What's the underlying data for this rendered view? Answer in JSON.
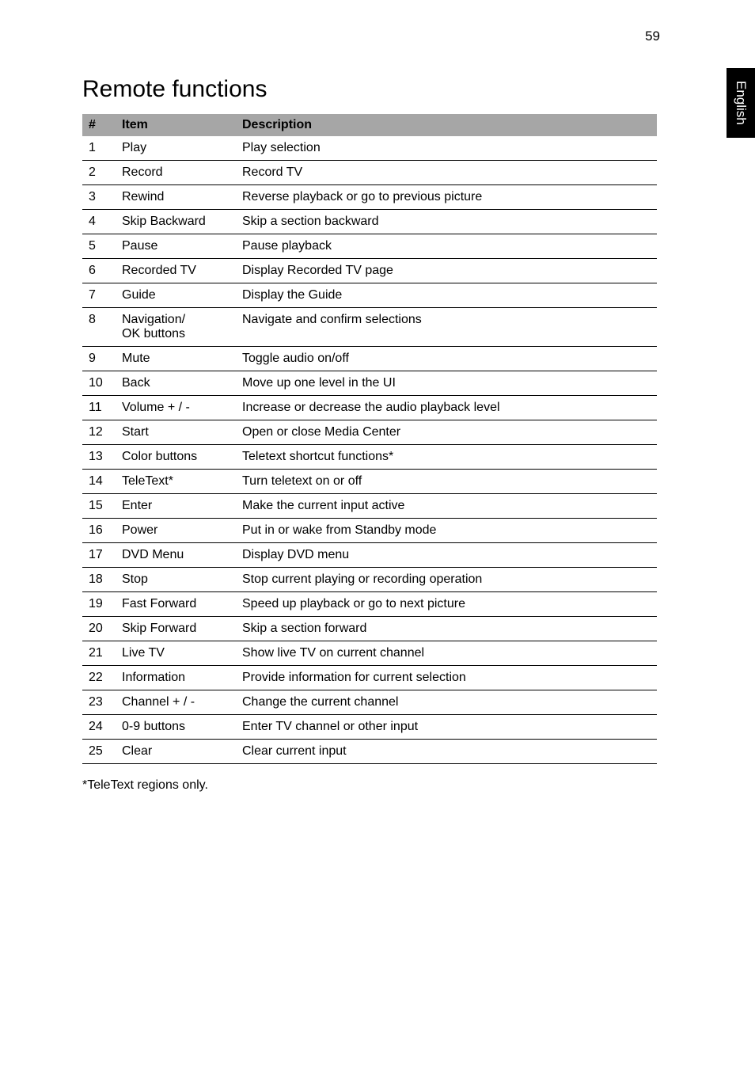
{
  "page_number": "59",
  "side_tab": "English",
  "section_title": "Remote functions",
  "table": {
    "headers": [
      "#",
      "Item",
      "Description"
    ],
    "rows": [
      [
        "1",
        "Play",
        "Play selection"
      ],
      [
        "2",
        "Record",
        "Record TV"
      ],
      [
        "3",
        "Rewind",
        "Reverse playback or go to previous picture"
      ],
      [
        "4",
        "Skip Backward",
        "Skip a section backward"
      ],
      [
        "5",
        "Pause",
        "Pause playback"
      ],
      [
        "6",
        "Recorded TV",
        "Display Recorded TV page"
      ],
      [
        "7",
        "Guide",
        "Display the Guide"
      ],
      [
        "8",
        "Navigation/\nOK buttons",
        "Navigate and confirm selections"
      ],
      [
        "9",
        "Mute",
        "Toggle audio on/off"
      ],
      [
        "10",
        "Back",
        "Move up one level in the UI"
      ],
      [
        "11",
        "Volume + / -",
        "Increase or decrease the audio playback level"
      ],
      [
        "12",
        "Start",
        "Open or close Media Center"
      ],
      [
        "13",
        "Color buttons",
        "Teletext shortcut functions*"
      ],
      [
        "14",
        "TeleText*",
        "Turn teletext on or off"
      ],
      [
        "15",
        "Enter",
        "Make the current input active"
      ],
      [
        "16",
        "Power",
        "Put in or wake from Standby mode"
      ],
      [
        "17",
        "DVD Menu",
        "Display DVD menu"
      ],
      [
        "18",
        "Stop",
        "Stop current playing or recording operation"
      ],
      [
        "19",
        "Fast Forward",
        "Speed up playback or go to next picture"
      ],
      [
        "20",
        "Skip Forward",
        "Skip a section forward"
      ],
      [
        "21",
        "Live TV",
        "Show live TV on current channel"
      ],
      [
        "22",
        "Information",
        "Provide information for current selection"
      ],
      [
        "23",
        "Channel + / -",
        "Change the current channel"
      ],
      [
        "24",
        "0-9 buttons",
        "Enter TV channel or other input"
      ],
      [
        "25",
        "Clear",
        "Clear current input"
      ]
    ]
  },
  "footnote": "*TeleText regions only."
}
